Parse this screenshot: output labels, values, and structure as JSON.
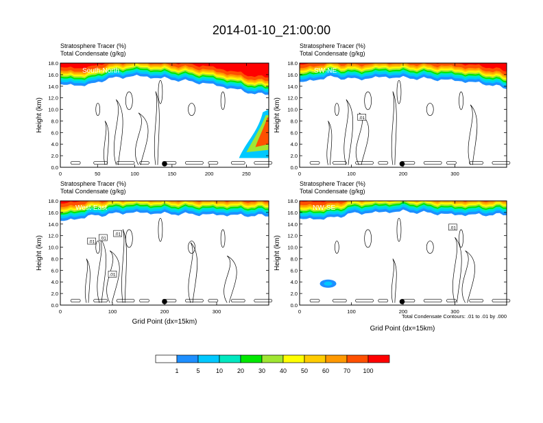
{
  "title": "2014-01-10_21:00:00",
  "colors": {
    "scale": [
      "#ffffff",
      "#1e8fff",
      "#00c8ff",
      "#00e8c0",
      "#00e800",
      "#a0e632",
      "#ffff00",
      "#ffcc00",
      "#ff9900",
      "#ff5000",
      "#ff0000"
    ]
  },
  "colorbar": {
    "labels": [
      "1",
      "5",
      "10",
      "20",
      "30",
      "40",
      "50",
      "60",
      "70",
      "100"
    ]
  },
  "panels": [
    {
      "id": "south-north",
      "label": "South-North",
      "line1": "Stratosphere Tracer   (%)",
      "line2": "Total Condensate   (g/kg)",
      "ylabel": "Height (km)",
      "xlabel": "",
      "footnote": "",
      "xmax": 280,
      "xticks": [
        "0",
        "50",
        "100",
        "150",
        "200",
        "250"
      ],
      "xtick_values": [
        0,
        50,
        100,
        150,
        200,
        250
      ],
      "yticks": [
        "0.0",
        "2.0",
        "4.0",
        "6.0",
        "8.0",
        "10.0",
        "12.0",
        "14.0",
        "16.0",
        "18.0"
      ],
      "dot_x": 140,
      "contour_labels": []
    },
    {
      "id": "sw-ne",
      "label": "SW-NE",
      "line1": "Stratosphere Tracer   (%)",
      "line2": "Total Condensate   (g/kg)",
      "ylabel": "Height (km)",
      "xlabel": "",
      "footnote": "",
      "xmax": 400,
      "xticks": [
        "0",
        "100",
        "200",
        "300"
      ],
      "xtick_values": [
        0,
        100,
        200,
        300
      ],
      "yticks": [
        "0.0",
        "2.0",
        "4.0",
        "6.0",
        "8.0",
        "10.0",
        "12.0",
        "14.0",
        "16.0",
        "18.0"
      ],
      "dot_x": 198,
      "contour_labels": [
        {
          "text": ".01",
          "x": 120,
          "y": 8.6
        }
      ]
    },
    {
      "id": "west-east",
      "label": "West-East",
      "line1": "Stratosphere Tracer   (%)",
      "line2": "Total Condensate   (g/kg)",
      "ylabel": "Height (km)",
      "xlabel": "Grid Point (dx=15km)",
      "footnote": "",
      "xmax": 400,
      "xticks": [
        "0",
        "100",
        "200",
        "300"
      ],
      "xtick_values": [
        0,
        100,
        200,
        300
      ],
      "yticks": [
        "0.0",
        "2.0",
        "4.0",
        "6.0",
        "8.0",
        "10.0",
        "12.0",
        "14.0",
        "16.0",
        "18.0"
      ],
      "dot_x": 200,
      "contour_labels": [
        {
          "text": ".01",
          "x": 60,
          "y": 11.0
        },
        {
          "text": ".01",
          "x": 82,
          "y": 11.6
        },
        {
          "text": ".01",
          "x": 110,
          "y": 12.3
        },
        {
          "text": ".01",
          "x": 100,
          "y": 5.3
        }
      ]
    },
    {
      "id": "nw-se",
      "label": "NW-SE",
      "line1": "Stratosphere Tracer   (%)",
      "line2": "Total Condensate   (g/kg)",
      "ylabel": "Height (km)",
      "xlabel": "Grid Point (dx=15km)",
      "footnote": "Total Condensate Contours: .01 to .01 by .000",
      "xmax": 400,
      "xticks": [
        "0",
        "100",
        "200",
        "300"
      ],
      "xtick_values": [
        0,
        100,
        200,
        300
      ],
      "yticks": [
        "0.0",
        "2.0",
        "4.0",
        "6.0",
        "8.0",
        "10.0",
        "12.0",
        "14.0",
        "16.0",
        "18.0"
      ],
      "dot_x": 198,
      "contour_labels": [
        {
          "text": ".01",
          "x": 296,
          "y": 13.4
        }
      ]
    }
  ],
  "chart_data": {
    "type": "heatmap",
    "title": "2014-01-10_21:00:00",
    "ylabel": "Height (km)",
    "xlabel": "Grid Point (dx=15km)",
    "ylim": [
      0,
      18
    ],
    "fields": [
      "Stratosphere Tracer (%)",
      "Total Condensate (g/kg)"
    ],
    "contour_levels": [
      0.01
    ],
    "colorbar_levels": [
      1,
      5,
      10,
      20,
      30,
      40,
      50,
      60,
      70,
      100
    ],
    "panels": [
      {
        "name": "South-North",
        "xlim": [
          0,
          280
        ],
        "tracer_base_km": [
          [
            0,
            14.2
          ],
          [
            40,
            14.2
          ],
          [
            60,
            15.2
          ],
          [
            100,
            15.8
          ],
          [
            150,
            15.2
          ],
          [
            200,
            14.4
          ],
          [
            245,
            13.2
          ],
          [
            265,
            12.6
          ],
          [
            280,
            12.6
          ]
        ]
      },
      {
        "name": "SW-NE",
        "xlim": [
          0,
          400
        ],
        "tracer_base_km": [
          [
            0,
            14.6
          ],
          [
            60,
            15.6
          ],
          [
            110,
            15.2
          ],
          [
            160,
            15.6
          ],
          [
            220,
            15.4
          ],
          [
            300,
            15.0
          ],
          [
            360,
            14.4
          ],
          [
            400,
            13.6
          ]
        ]
      },
      {
        "name": "West-East",
        "xlim": [
          0,
          400
        ],
        "tracer_base_km": [
          [
            0,
            14.4
          ],
          [
            60,
            15.4
          ],
          [
            130,
            16.0
          ],
          [
            200,
            15.8
          ],
          [
            300,
            15.6
          ],
          [
            400,
            15.4
          ]
        ]
      },
      {
        "name": "NW-SE",
        "xlim": [
          0,
          400
        ],
        "tracer_base_km": [
          [
            0,
            14.8
          ],
          [
            60,
            15.0
          ],
          [
            100,
            15.8
          ],
          [
            200,
            16.2
          ],
          [
            300,
            15.6
          ],
          [
            400,
            15.6
          ]
        ]
      }
    ]
  }
}
